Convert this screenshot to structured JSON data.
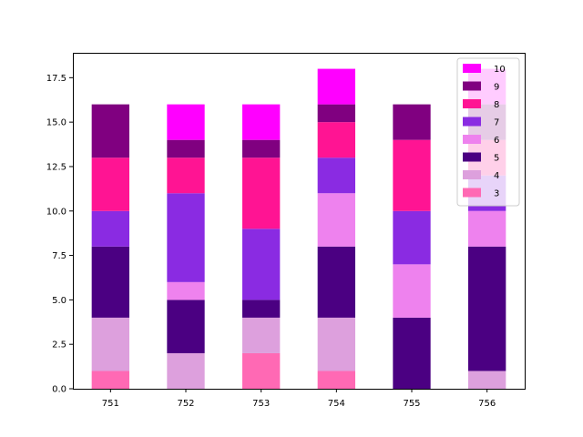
{
  "chart_data": {
    "type": "bar",
    "stacked": true,
    "categories": [
      "751",
      "752",
      "753",
      "754",
      "755",
      "756"
    ],
    "series": [
      {
        "name": "3",
        "color": "#ff69b4",
        "values": [
          1,
          0,
          2,
          1,
          0,
          0
        ]
      },
      {
        "name": "4",
        "color": "#dda0dd",
        "values": [
          3,
          2,
          2,
          3,
          0,
          1
        ]
      },
      {
        "name": "5",
        "color": "#4b0082",
        "values": [
          4,
          3,
          1,
          4,
          4,
          7
        ]
      },
      {
        "name": "6",
        "color": "#ee82ee",
        "values": [
          0,
          1,
          0,
          3,
          3,
          2
        ]
      },
      {
        "name": "7",
        "color": "#8a2be2",
        "values": [
          2,
          5,
          4,
          2,
          3,
          2
        ]
      },
      {
        "name": "8",
        "color": "#ff1493",
        "values": [
          3,
          2,
          4,
          2,
          4,
          2
        ]
      },
      {
        "name": "9",
        "color": "#800080",
        "values": [
          3,
          1,
          1,
          1,
          2,
          2
        ]
      },
      {
        "name": "10",
        "color": "#ff00ff",
        "values": [
          0,
          2,
          2,
          2,
          0,
          2
        ]
      }
    ],
    "ylim": [
      0,
      18.9
    ],
    "yticks": [
      0.0,
      2.5,
      5.0,
      7.5,
      10.0,
      12.5,
      15.0,
      17.5
    ],
    "ytick_labels": [
      "0.0",
      "2.5",
      "5.0",
      "7.5",
      "10.0",
      "12.5",
      "15.0",
      "17.5"
    ],
    "legend": {
      "placement": "top-right",
      "order": [
        "10",
        "9",
        "8",
        "7",
        "6",
        "5",
        "4",
        "3"
      ]
    },
    "grid": false,
    "title": "",
    "xlabel": "",
    "ylabel": ""
  }
}
